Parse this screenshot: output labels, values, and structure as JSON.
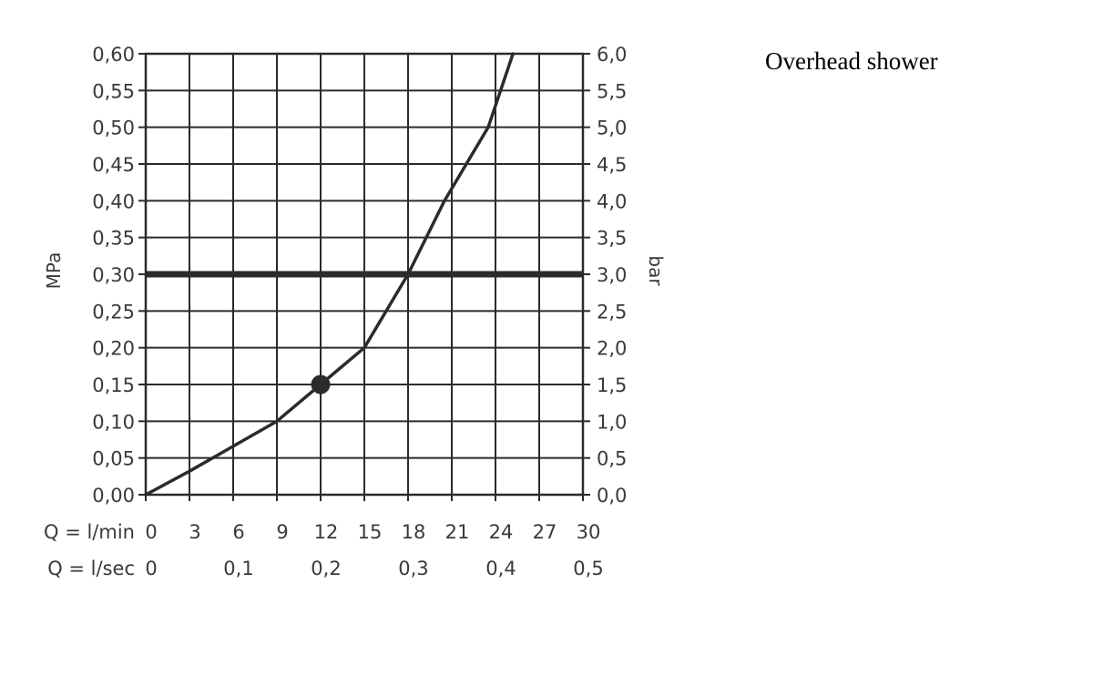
{
  "side_title": "Overhead shower",
  "chart_data": {
    "type": "line",
    "title": "",
    "ylabel_left": "MPa",
    "ylabel_right": "bar",
    "ylim": [
      0,
      0.6
    ],
    "y_ticks_left": [
      "0,00",
      "0,05",
      "0,10",
      "0,15",
      "0,20",
      "0,25",
      "0,30",
      "0,35",
      "0,40",
      "0,45",
      "0,50",
      "0,55",
      "0,60"
    ],
    "y_ticks_right": [
      "0,0",
      "0,5",
      "1,0",
      "1,5",
      "2,0",
      "2,5",
      "3,0",
      "3,5",
      "4,0",
      "4,5",
      "5,0",
      "5,5",
      "6,0"
    ],
    "xlim": [
      0,
      30
    ],
    "x_row1_label": "Q = l/min",
    "x_ticks_lmin": [
      "0",
      "3",
      "6",
      "9",
      "12",
      "15",
      "18",
      "21",
      "24",
      "27",
      "30"
    ],
    "x_row2_label": "Q = l/sec",
    "x_ticks_lsec": [
      "0",
      "0,1",
      "0,2",
      "0,3",
      "0,4",
      "0,5"
    ],
    "grid": true,
    "series": [
      {
        "x": [
          0,
          3,
          6,
          9,
          12,
          15,
          18,
          20.5,
          23.5,
          25.2
        ],
        "y": [
          0,
          0.032,
          0.066,
          0.1,
          0.15,
          0.2,
          0.3,
          0.4,
          0.5,
          0.6
        ],
        "color": "#2b2b2b"
      }
    ],
    "reference_line_y": 0.3,
    "reference_line_color": "#2b2b2b",
    "marker_point": {
      "x": 12,
      "y": 0.15
    },
    "dashed_drop_x": 18
  }
}
